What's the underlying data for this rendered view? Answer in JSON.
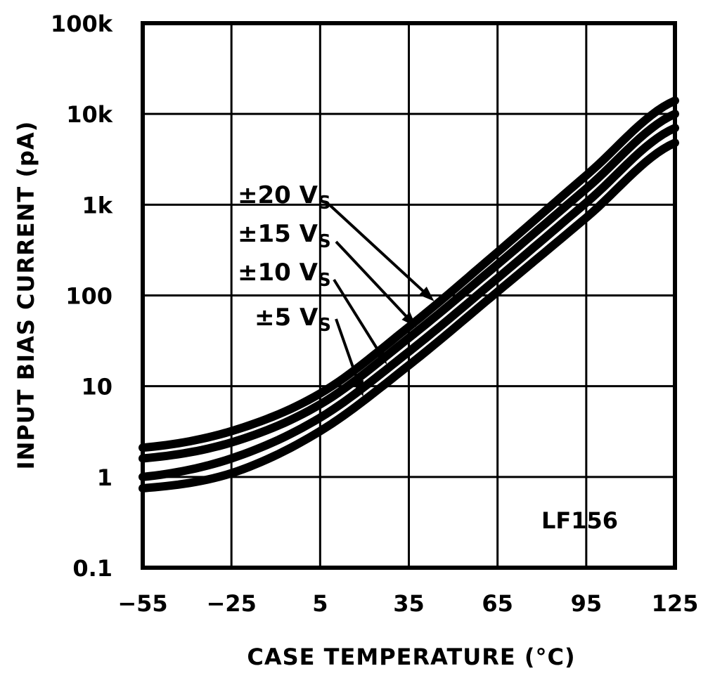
{
  "chart_data": {
    "type": "line",
    "title": "",
    "xlabel": "CASE TEMPERATURE (°C)",
    "ylabel": "INPUT BIAS CURRENT (pA)",
    "xlim": [
      -55,
      125
    ],
    "ylim": [
      0.1,
      100000
    ],
    "yscale": "log",
    "grid": true,
    "x_ticks": [
      -55,
      -25,
      5,
      35,
      65,
      95,
      125
    ],
    "x_tick_labels": [
      "−55",
      "−25",
      "5",
      "35",
      "65",
      "95",
      "125"
    ],
    "y_ticks": [
      0.1,
      1,
      10,
      100,
      1000,
      10000,
      100000
    ],
    "y_tick_labels": [
      "0.1",
      "1",
      "10",
      "100",
      "1k",
      "10k",
      "100k"
    ],
    "annotation": "LF156",
    "series": [
      {
        "name": "±20 V",
        "name_sub": "S",
        "x": [
          -55,
          -25,
          5,
          35,
          65,
          95,
          125
        ],
        "y": [
          2.1,
          3.2,
          8.3,
          45,
          300,
          2100,
          14000
        ]
      },
      {
        "name": "±15 V",
        "name_sub": "S",
        "x": [
          -55,
          -25,
          5,
          35,
          65,
          95,
          125
        ],
        "y": [
          1.6,
          2.4,
          6.3,
          34,
          220,
          1500,
          10000
        ]
      },
      {
        "name": "±10 V",
        "name_sub": "S",
        "x": [
          -55,
          -25,
          5,
          35,
          65,
          95,
          125
        ],
        "y": [
          1.0,
          1.6,
          4.5,
          24,
          155,
          1050,
          7000
        ]
      },
      {
        "name": "±5 V",
        "name_sub": "S",
        "x": [
          -55,
          -25,
          5,
          35,
          65,
          95,
          125
        ],
        "y": [
          0.75,
          1.1,
          3.2,
          17,
          110,
          720,
          4800
        ]
      }
    ]
  }
}
